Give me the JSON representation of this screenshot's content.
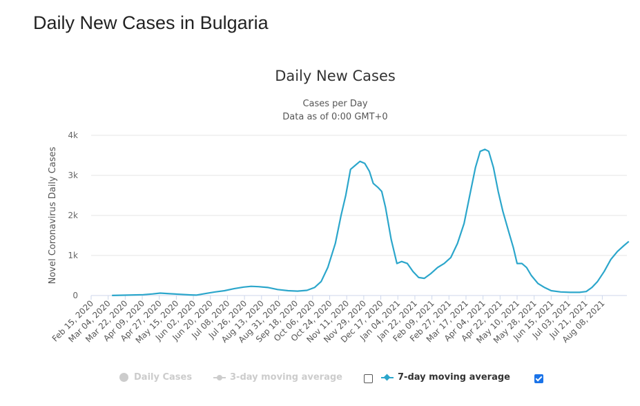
{
  "page": {
    "title": "Daily New Cases in Bulgaria"
  },
  "chart_data": {
    "type": "line",
    "title": "Daily New Cases",
    "subtitle": "Cases per Day",
    "subtitle2": "Data as of 0:00 GMT+0",
    "ylabel": "Novel Coronavirus Daily Cases",
    "xlabel": "",
    "ylim": [
      0,
      4000
    ],
    "yticks": [
      0,
      1000,
      2000,
      3000,
      4000
    ],
    "ytick_labels": [
      "0",
      "1k",
      "2k",
      "3k",
      "4k"
    ],
    "x_range": [
      "2020-02-15",
      "2021-09-08"
    ],
    "xtick_labels": [
      "Feb 15, 2020",
      "Mar 04, 2020",
      "Mar 22, 2020",
      "Apr 09, 2020",
      "Apr 27, 2020",
      "May 15, 2020",
      "Jun 02, 2020",
      "Jun 20, 2020",
      "Jul 08, 2020",
      "Jul 26, 2020",
      "Aug 13, 2020",
      "Aug 31, 2020",
      "Sep 18, 2020",
      "Oct 06, 2020",
      "Oct 24, 2020",
      "Nov 11, 2020",
      "Nov 29, 2020",
      "Dec 17, 2020",
      "Jan 04, 2021",
      "Jan 22, 2021",
      "Feb 09, 2021",
      "Feb 27, 2021",
      "Mar 17, 2021",
      "Apr 04, 2021",
      "Apr 22, 2021",
      "May 10, 2021",
      "May 28, 2021",
      "Jun 15, 2021",
      "Jul 03, 2021",
      "Jul 21, 2021",
      "Aug 08, 2021"
    ],
    "grid": true,
    "legend_position": "bottom-center",
    "series": [
      {
        "name": "7-day moving average",
        "color": "#2ba6cb",
        "visible": true,
        "points": [
          [
            "2020-03-08",
            2
          ],
          [
            "2020-03-25",
            10
          ],
          [
            "2020-04-10",
            20
          ],
          [
            "2020-04-20",
            40
          ],
          [
            "2020-04-28",
            60
          ],
          [
            "2020-05-08",
            45
          ],
          [
            "2020-05-20",
            30
          ],
          [
            "2020-05-30",
            15
          ],
          [
            "2020-06-05",
            10
          ],
          [
            "2020-06-15",
            50
          ],
          [
            "2020-06-25",
            90
          ],
          [
            "2020-07-05",
            120
          ],
          [
            "2020-07-15",
            170
          ],
          [
            "2020-07-25",
            210
          ],
          [
            "2020-08-02",
            230
          ],
          [
            "2020-08-10",
            220
          ],
          [
            "2020-08-20",
            200
          ],
          [
            "2020-08-30",
            150
          ],
          [
            "2020-09-10",
            120
          ],
          [
            "2020-09-20",
            110
          ],
          [
            "2020-09-30",
            130
          ],
          [
            "2020-10-08",
            200
          ],
          [
            "2020-10-15",
            350
          ],
          [
            "2020-10-22",
            700
          ],
          [
            "2020-10-30",
            1300
          ],
          [
            "2020-11-05",
            2000
          ],
          [
            "2020-11-10",
            2500
          ],
          [
            "2020-11-15",
            3150
          ],
          [
            "2020-11-20",
            3250
          ],
          [
            "2020-11-25",
            3350
          ],
          [
            "2020-11-30",
            3300
          ],
          [
            "2020-12-05",
            3100
          ],
          [
            "2020-12-09",
            2800
          ],
          [
            "2020-12-14",
            2700
          ],
          [
            "2020-12-18",
            2600
          ],
          [
            "2020-12-22",
            2200
          ],
          [
            "2020-12-28",
            1400
          ],
          [
            "2021-01-03",
            800
          ],
          [
            "2021-01-08",
            850
          ],
          [
            "2021-01-14",
            800
          ],
          [
            "2021-01-20",
            600
          ],
          [
            "2021-01-26",
            450
          ],
          [
            "2021-02-01",
            430
          ],
          [
            "2021-02-08",
            550
          ],
          [
            "2021-02-15",
            700
          ],
          [
            "2021-02-22",
            800
          ],
          [
            "2021-03-01",
            950
          ],
          [
            "2021-03-08",
            1300
          ],
          [
            "2021-03-15",
            1800
          ],
          [
            "2021-03-21",
            2500
          ],
          [
            "2021-03-27",
            3200
          ],
          [
            "2021-04-01",
            3600
          ],
          [
            "2021-04-06",
            3650
          ],
          [
            "2021-04-10",
            3600
          ],
          [
            "2021-04-15",
            3200
          ],
          [
            "2021-04-20",
            2600
          ],
          [
            "2021-04-25",
            2100
          ],
          [
            "2021-05-01",
            1600
          ],
          [
            "2021-05-06",
            1200
          ],
          [
            "2021-05-10",
            800
          ],
          [
            "2021-05-15",
            800
          ],
          [
            "2021-05-20",
            700
          ],
          [
            "2021-05-25",
            500
          ],
          [
            "2021-06-01",
            300
          ],
          [
            "2021-06-08",
            200
          ],
          [
            "2021-06-15",
            120
          ],
          [
            "2021-06-25",
            90
          ],
          [
            "2021-07-05",
            80
          ],
          [
            "2021-07-15",
            80
          ],
          [
            "2021-07-22",
            100
          ],
          [
            "2021-07-28",
            200
          ],
          [
            "2021-08-03",
            350
          ],
          [
            "2021-08-10",
            600
          ],
          [
            "2021-08-17",
            900
          ],
          [
            "2021-08-24",
            1100
          ],
          [
            "2021-08-31",
            1250
          ],
          [
            "2021-09-05",
            1350
          ]
        ]
      }
    ]
  },
  "legend": [
    {
      "label": "Daily Cases",
      "enabled": false,
      "checkbox": false
    },
    {
      "label": "3-day moving average",
      "enabled": false,
      "checkbox": false
    },
    {
      "label": "7-day moving average",
      "enabled": true,
      "checkbox": true
    }
  ]
}
